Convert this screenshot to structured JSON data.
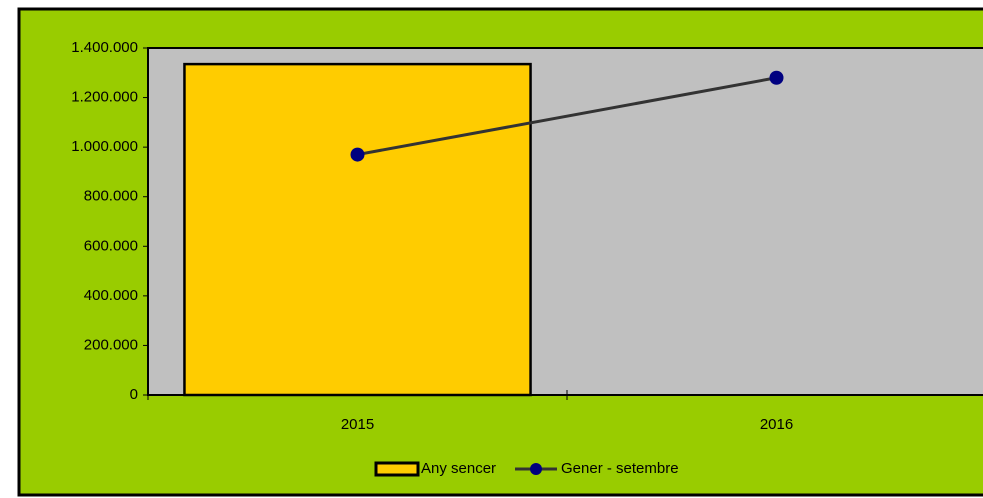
{
  "chart_data": {
    "type": "bar",
    "categories": [
      "2015",
      "2016"
    ],
    "series": [
      {
        "name": "Any sencer",
        "type": "bar",
        "color": "#ffcc00",
        "values": [
          1335000,
          null
        ]
      },
      {
        "name": "Gener - setembre",
        "type": "line",
        "color": "#000080",
        "values": [
          970000,
          1280000
        ]
      }
    ],
    "ylim": [
      0,
      1400000
    ],
    "yticks": [
      0,
      {
        "value": 200000,
        "label": "200.000"
      },
      {
        "value": 400000,
        "label": "400.000"
      },
      {
        "value": 600000,
        "label": "600.000"
      },
      {
        "value": 800000,
        "label": "800.000"
      },
      {
        "value": 1000000,
        "label": "1.000.000"
      },
      {
        "value": 1200000,
        "label": "1.200.000"
      },
      {
        "value": 1400000,
        "label": "1.400.000"
      }
    ],
    "grid": false,
    "legend": "bottom"
  }
}
